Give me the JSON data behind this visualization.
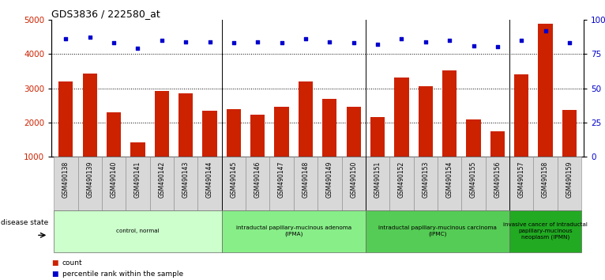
{
  "title": "GDS3836 / 222580_at",
  "samples": [
    "GSM490138",
    "GSM490139",
    "GSM490140",
    "GSM490141",
    "GSM490142",
    "GSM490143",
    "GSM490144",
    "GSM490145",
    "GSM490146",
    "GSM490147",
    "GSM490148",
    "GSM490149",
    "GSM490150",
    "GSM490151",
    "GSM490152",
    "GSM490153",
    "GSM490154",
    "GSM490155",
    "GSM490156",
    "GSM490157",
    "GSM490158",
    "GSM490159"
  ],
  "counts": [
    3200,
    3430,
    2300,
    1430,
    2920,
    2840,
    2340,
    2400,
    2220,
    2460,
    3200,
    2700,
    2450,
    2150,
    3310,
    3060,
    3510,
    2090,
    1740,
    3400,
    4870,
    2360
  ],
  "percentile_ranks": [
    86,
    87,
    83,
    79,
    85,
    84,
    84,
    83,
    84,
    83,
    86,
    84,
    83,
    82,
    86,
    84,
    85,
    81,
    80,
    85,
    92,
    83
  ],
  "bar_color": "#cc2200",
  "dot_color": "#0000cc",
  "ylim_left": [
    1000,
    5000
  ],
  "ylim_right": [
    0,
    100
  ],
  "yticks_left": [
    1000,
    2000,
    3000,
    4000,
    5000
  ],
  "yticks_right": [
    0,
    25,
    50,
    75,
    100
  ],
  "ytick_labels_right": [
    "0",
    "25",
    "50",
    "75",
    "100%"
  ],
  "groups": [
    {
      "label": "control, normal",
      "start": 0,
      "end": 7,
      "color": "#ccffcc"
    },
    {
      "label": "intraductal papillary-mucinous adenoma\n(IPMA)",
      "start": 7,
      "end": 13,
      "color": "#88ee88"
    },
    {
      "label": "intraductal papillary-mucinous carcinoma\n(IPMC)",
      "start": 13,
      "end": 19,
      "color": "#55cc55"
    },
    {
      "label": "invasive cancer of intraductal\npapillary-mucinous\nneoplasm (IPMN)",
      "start": 19,
      "end": 22,
      "color": "#22aa22"
    }
  ],
  "disease_state_label": "disease state",
  "legend_count_label": "count",
  "legend_percentile_label": "percentile rank within the sample",
  "group_boundaries": [
    7,
    13,
    19
  ]
}
